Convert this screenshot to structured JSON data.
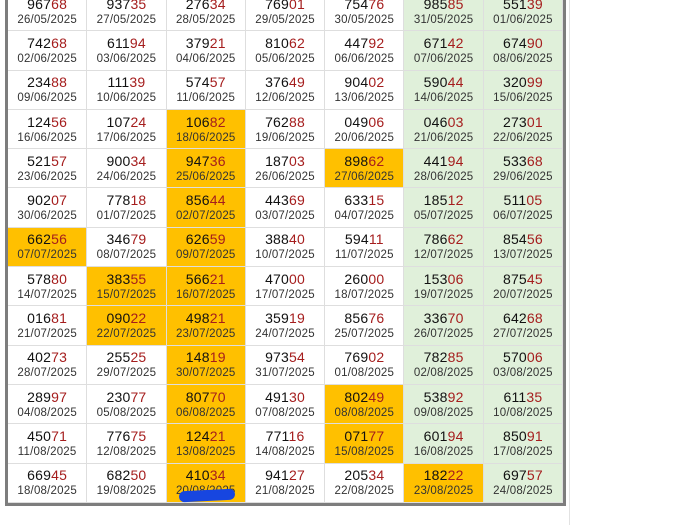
{
  "colors": {
    "highlight": "#ffc000",
    "weekend": "#e0f0da",
    "tail_digits": "#a51d1d"
  },
  "rows": [
    [
      {
        "n": "96768",
        "d": "26/05/2025"
      },
      {
        "n": "93735",
        "d": "27/05/2025"
      },
      {
        "n": "27634",
        "d": "28/05/2025"
      },
      {
        "n": "76901",
        "d": "29/05/2025"
      },
      {
        "n": "75476",
        "d": "30/05/2025"
      },
      {
        "n": "98585",
        "d": "31/05/2025"
      },
      {
        "n": "55139",
        "d": "01/06/2025"
      }
    ],
    [
      {
        "n": "74268",
        "d": "02/06/2025"
      },
      {
        "n": "61194",
        "d": "03/06/2025"
      },
      {
        "n": "37921",
        "d": "04/06/2025"
      },
      {
        "n": "81062",
        "d": "05/06/2025"
      },
      {
        "n": "44792",
        "d": "06/06/2025"
      },
      {
        "n": "67142",
        "d": "07/06/2025"
      },
      {
        "n": "67490",
        "d": "08/06/2025"
      }
    ],
    [
      {
        "n": "23488",
        "d": "09/06/2025"
      },
      {
        "n": "11139",
        "d": "10/06/2025"
      },
      {
        "n": "57457",
        "d": "11/06/2025"
      },
      {
        "n": "37649",
        "d": "12/06/2025"
      },
      {
        "n": "90402",
        "d": "13/06/2025"
      },
      {
        "n": "59044",
        "d": "14/06/2025"
      },
      {
        "n": "32099",
        "d": "15/06/2025"
      }
    ],
    [
      {
        "n": "12456",
        "d": "16/06/2025"
      },
      {
        "n": "10724",
        "d": "17/06/2025"
      },
      {
        "n": "10682",
        "d": "18/06/2025",
        "hl": true
      },
      {
        "n": "76288",
        "d": "19/06/2025"
      },
      {
        "n": "04906",
        "d": "20/06/2025"
      },
      {
        "n": "04603",
        "d": "21/06/2025"
      },
      {
        "n": "27301",
        "d": "22/06/2025"
      }
    ],
    [
      {
        "n": "52157",
        "d": "23/06/2025"
      },
      {
        "n": "90034",
        "d": "24/06/2025"
      },
      {
        "n": "94736",
        "d": "25/06/2025",
        "hl": true
      },
      {
        "n": "18703",
        "d": "26/06/2025"
      },
      {
        "n": "89862",
        "d": "27/06/2025",
        "hl": true
      },
      {
        "n": "44194",
        "d": "28/06/2025"
      },
      {
        "n": "53368",
        "d": "29/06/2025"
      }
    ],
    [
      {
        "n": "90207",
        "d": "30/06/2025"
      },
      {
        "n": "77818",
        "d": "01/07/2025"
      },
      {
        "n": "85644",
        "d": "02/07/2025",
        "hl": true
      },
      {
        "n": "44369",
        "d": "03/07/2025"
      },
      {
        "n": "63315",
        "d": "04/07/2025"
      },
      {
        "n": "18512",
        "d": "05/07/2025"
      },
      {
        "n": "51105",
        "d": "06/07/2025"
      }
    ],
    [
      {
        "n": "66256",
        "d": "07/07/2025",
        "hl": true
      },
      {
        "n": "34679",
        "d": "08/07/2025"
      },
      {
        "n": "62659",
        "d": "09/07/2025",
        "hl": true
      },
      {
        "n": "38840",
        "d": "10/07/2025"
      },
      {
        "n": "59411",
        "d": "11/07/2025"
      },
      {
        "n": "78662",
        "d": "12/07/2025"
      },
      {
        "n": "85456",
        "d": "13/07/2025"
      }
    ],
    [
      {
        "n": "57880",
        "d": "14/07/2025"
      },
      {
        "n": "38355",
        "d": "15/07/2025",
        "hl": true
      },
      {
        "n": "56621",
        "d": "16/07/2025",
        "hl": true
      },
      {
        "n": "47000",
        "d": "17/07/2025"
      },
      {
        "n": "26000",
        "d": "18/07/2025"
      },
      {
        "n": "15306",
        "d": "19/07/2025"
      },
      {
        "n": "87545",
        "d": "20/07/2025"
      }
    ],
    [
      {
        "n": "01681",
        "d": "21/07/2025"
      },
      {
        "n": "09022",
        "d": "22/07/2025",
        "hl": true
      },
      {
        "n": "49821",
        "d": "23/07/2025",
        "hl": true
      },
      {
        "n": "35919",
        "d": "24/07/2025"
      },
      {
        "n": "85676",
        "d": "25/07/2025"
      },
      {
        "n": "33670",
        "d": "26/07/2025"
      },
      {
        "n": "64268",
        "d": "27/07/2025"
      }
    ],
    [
      {
        "n": "40273",
        "d": "28/07/2025"
      },
      {
        "n": "25525",
        "d": "29/07/2025"
      },
      {
        "n": "14819",
        "d": "30/07/2025",
        "hl": true
      },
      {
        "n": "97354",
        "d": "31/07/2025"
      },
      {
        "n": "76902",
        "d": "01/08/2025"
      },
      {
        "n": "78285",
        "d": "02/08/2025"
      },
      {
        "n": "57006",
        "d": "03/08/2025"
      }
    ],
    [
      {
        "n": "28997",
        "d": "04/08/2025"
      },
      {
        "n": "23077",
        "d": "05/08/2025"
      },
      {
        "n": "80770",
        "d": "06/08/2025",
        "hl": true
      },
      {
        "n": "49130",
        "d": "07/08/2025"
      },
      {
        "n": "80249",
        "d": "08/08/2025",
        "hl": true
      },
      {
        "n": "53892",
        "d": "09/08/2025"
      },
      {
        "n": "61135",
        "d": "10/08/2025"
      }
    ],
    [
      {
        "n": "45071",
        "d": "11/08/2025"
      },
      {
        "n": "77675",
        "d": "12/08/2025"
      },
      {
        "n": "12421",
        "d": "13/08/2025",
        "hl": true
      },
      {
        "n": "77116",
        "d": "14/08/2025"
      },
      {
        "n": "07177",
        "d": "15/08/2025",
        "hl": true
      },
      {
        "n": "60194",
        "d": "16/08/2025"
      },
      {
        "n": "85091",
        "d": "17/08/2025"
      }
    ],
    [
      {
        "n": "66945",
        "d": "18/08/2025"
      },
      {
        "n": "68250",
        "d": "19/08/2025"
      },
      {
        "n": "41034",
        "d": "20/08/2025",
        "hl": true,
        "scribbled": true
      },
      {
        "n": "94127",
        "d": "21/08/2025"
      },
      {
        "n": "20534",
        "d": "22/08/2025"
      },
      {
        "n": "18222",
        "d": "23/08/2025",
        "hl": true
      },
      {
        "n": "69757",
        "d": "24/08/2025"
      }
    ]
  ]
}
